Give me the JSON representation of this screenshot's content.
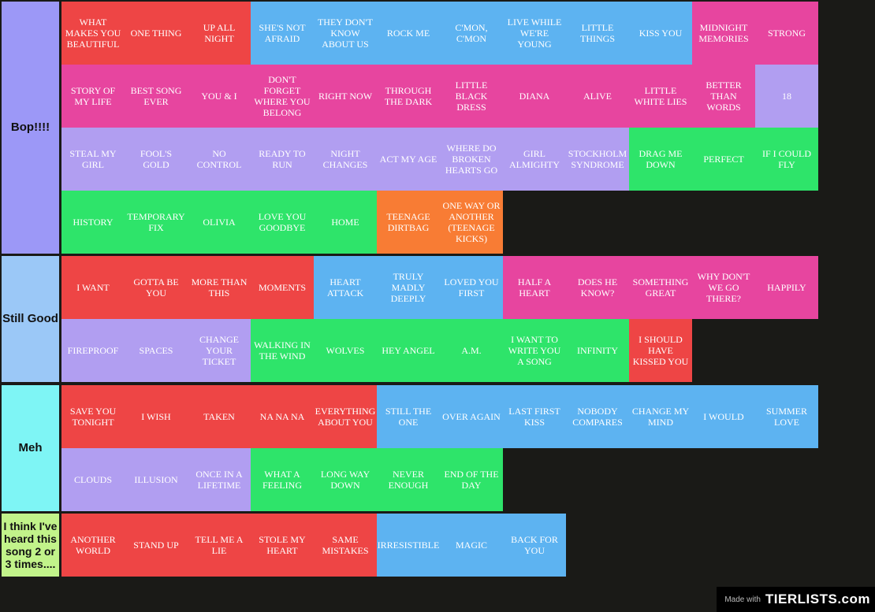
{
  "colors": {
    "red": "#ee4545",
    "blue": "#5db3f1",
    "pink": "#e7459f",
    "purple": "#b19ef1",
    "green": "#2ee46a",
    "orange": "#f87c34"
  },
  "tiers": [
    {
      "label": "Bop!!!!",
      "label_color": "#9c98f7",
      "rows": 4,
      "items": [
        {
          "text": "What makes you beautiful",
          "color": "red"
        },
        {
          "text": "One thing",
          "color": "red"
        },
        {
          "text": "Up all night",
          "color": "red"
        },
        {
          "text": "She's not afraid",
          "color": "blue"
        },
        {
          "text": "They don't know about us",
          "color": "blue"
        },
        {
          "text": "Rock me",
          "color": "blue"
        },
        {
          "text": "C'mon, c'mon",
          "color": "blue"
        },
        {
          "text": "Live while we're young",
          "color": "blue"
        },
        {
          "text": "Little things",
          "color": "blue"
        },
        {
          "text": "Kiss you",
          "color": "blue"
        },
        {
          "text": "Midnight memories",
          "color": "pink"
        },
        {
          "text": "Strong",
          "color": "pink"
        },
        {
          "text": "Story of my life",
          "color": "pink"
        },
        {
          "text": "Best song ever",
          "color": "pink"
        },
        {
          "text": "You & I",
          "color": "pink"
        },
        {
          "text": "Don't forget where you belong",
          "color": "pink"
        },
        {
          "text": "Right now",
          "color": "pink"
        },
        {
          "text": "Through the dark",
          "color": "pink"
        },
        {
          "text": "Little black dress",
          "color": "pink"
        },
        {
          "text": "Diana",
          "color": "pink"
        },
        {
          "text": "Alive",
          "color": "pink"
        },
        {
          "text": "Little white lies",
          "color": "pink"
        },
        {
          "text": "Better than words",
          "color": "pink"
        },
        {
          "text": "18",
          "color": "purple"
        },
        {
          "text": "Steal my girl",
          "color": "purple"
        },
        {
          "text": "Fool's gold",
          "color": "purple"
        },
        {
          "text": "No control",
          "color": "purple"
        },
        {
          "text": "Ready to run",
          "color": "purple"
        },
        {
          "text": "Night changes",
          "color": "purple"
        },
        {
          "text": "Act my age",
          "color": "purple"
        },
        {
          "text": "Where do broken hearts go",
          "color": "purple"
        },
        {
          "text": "Girl almighty",
          "color": "purple"
        },
        {
          "text": "Stockholm syndrome",
          "color": "purple"
        },
        {
          "text": "Drag me down",
          "color": "green"
        },
        {
          "text": "Perfect",
          "color": "green"
        },
        {
          "text": "If I could fly",
          "color": "green"
        },
        {
          "text": "History",
          "color": "green"
        },
        {
          "text": "Temporary fix",
          "color": "green"
        },
        {
          "text": "Olivia",
          "color": "green"
        },
        {
          "text": "Love you goodbye",
          "color": "green"
        },
        {
          "text": "Home",
          "color": "green"
        },
        {
          "text": "Teenage dirtbag",
          "color": "orange"
        },
        {
          "text": "One way or another (teenage kicks)",
          "color": "orange"
        }
      ]
    },
    {
      "label": "Still Good",
      "label_color": "#9bc8f7",
      "rows": 2,
      "items": [
        {
          "text": "I want",
          "color": "red"
        },
        {
          "text": "Gotta be you",
          "color": "red"
        },
        {
          "text": "More than this",
          "color": "red"
        },
        {
          "text": "Moments",
          "color": "red"
        },
        {
          "text": "Heart attack",
          "color": "blue"
        },
        {
          "text": "Truly madly deeply",
          "color": "blue"
        },
        {
          "text": "Loved you first",
          "color": "blue"
        },
        {
          "text": "Half a heart",
          "color": "pink"
        },
        {
          "text": "Does he know?",
          "color": "pink"
        },
        {
          "text": "Something great",
          "color": "pink"
        },
        {
          "text": "Why don't we go there?",
          "color": "pink"
        },
        {
          "text": "Happily",
          "color": "pink"
        },
        {
          "text": "Fireproof",
          "color": "purple"
        },
        {
          "text": "Spaces",
          "color": "purple"
        },
        {
          "text": "Change your ticket",
          "color": "purple"
        },
        {
          "text": "Walking in the wind",
          "color": "green"
        },
        {
          "text": "Wolves",
          "color": "green"
        },
        {
          "text": "Hey angel",
          "color": "green"
        },
        {
          "text": "A.M.",
          "color": "green"
        },
        {
          "text": "I want to write you a song",
          "color": "green"
        },
        {
          "text": "Infinity",
          "color": "green"
        },
        {
          "text": "I should have kissed you",
          "color": "red"
        }
      ]
    },
    {
      "label": "Meh",
      "label_color": "#7ef5f5",
      "rows": 2,
      "items": [
        {
          "text": "Save you tonight",
          "color": "red"
        },
        {
          "text": "I wish",
          "color": "red"
        },
        {
          "text": "Taken",
          "color": "red"
        },
        {
          "text": "Na na na",
          "color": "red"
        },
        {
          "text": "Everything about you",
          "color": "red"
        },
        {
          "text": "Still the one",
          "color": "blue"
        },
        {
          "text": "Over again",
          "color": "blue"
        },
        {
          "text": "Last first kiss",
          "color": "blue"
        },
        {
          "text": "Nobody compares",
          "color": "blue"
        },
        {
          "text": "Change my mind",
          "color": "blue"
        },
        {
          "text": "I would",
          "color": "blue"
        },
        {
          "text": "Summer love",
          "color": "blue"
        },
        {
          "text": "Clouds",
          "color": "purple"
        },
        {
          "text": "Illusion",
          "color": "purple"
        },
        {
          "text": "Once in a lifetime",
          "color": "purple"
        },
        {
          "text": "What a feeling",
          "color": "green"
        },
        {
          "text": "Long way down",
          "color": "green"
        },
        {
          "text": "Never enough",
          "color": "green"
        },
        {
          "text": "End of the day",
          "color": "green"
        }
      ]
    },
    {
      "label": "I think I've heard this song 2 or 3 times....",
      "label_color": "#c2f38a",
      "rows": 1,
      "items": [
        {
          "text": "Another world",
          "color": "red"
        },
        {
          "text": "Stand up",
          "color": "red"
        },
        {
          "text": "Tell me a lie",
          "color": "red"
        },
        {
          "text": "Stole my heart",
          "color": "red"
        },
        {
          "text": "Same mistakes",
          "color": "red"
        },
        {
          "text": "Irresistible",
          "color": "blue"
        },
        {
          "text": "Magic",
          "color": "blue"
        },
        {
          "text": "Back for you",
          "color": "blue"
        }
      ]
    }
  ],
  "watermark": {
    "made_with": "Made with",
    "logo": "TIERLISTS.com"
  }
}
